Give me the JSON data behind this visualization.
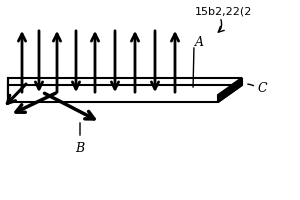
{
  "title_label": "15b2,22(2",
  "label_A": "A",
  "label_B": "B",
  "label_C": "C",
  "bg_color": "#ffffff",
  "arrow_color": "#000000",
  "fig_w": 3.0,
  "fig_h": 2.0,
  "dpi": 100
}
